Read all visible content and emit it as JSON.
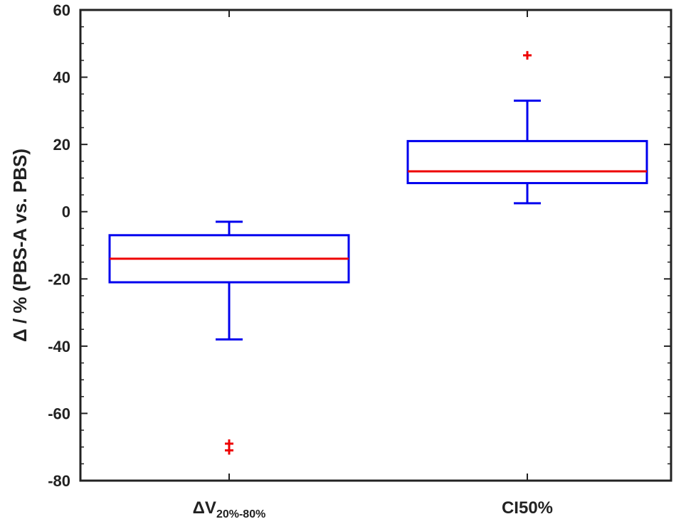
{
  "chart_data": {
    "type": "box",
    "ylabel": "Δ / % (PBS-A vs. PBS)",
    "ylim": [
      -80,
      60
    ],
    "yticks": [
      -80,
      -60,
      -40,
      -20,
      0,
      20,
      40,
      60
    ],
    "grid": false,
    "categories": [
      {
        "main": "ΔV",
        "sub": "20%-80%"
      },
      {
        "main": "CI50%",
        "sub": ""
      }
    ],
    "boxes": [
      {
        "q1": -21,
        "median": -14,
        "q3": -7,
        "whisker_low": -38,
        "whisker_high": -3,
        "outliers": [
          -69,
          -71
        ]
      },
      {
        "q1": 8.5,
        "median": 12,
        "q3": 21,
        "whisker_low": 2.5,
        "whisker_high": 33,
        "outliers": [
          46.5
        ]
      }
    ],
    "colors": {
      "box": "#0000ee",
      "median": "#ee0000",
      "outlier": "#ee0000",
      "axis": "#222222"
    }
  }
}
